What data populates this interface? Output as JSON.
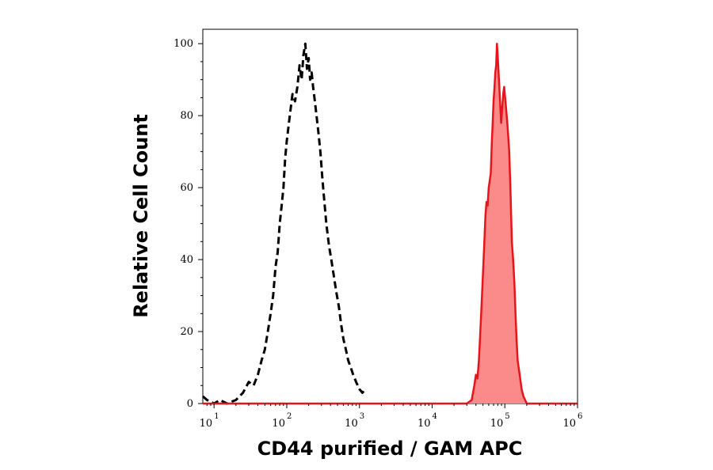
{
  "chart_data": {
    "type": "area",
    "title": "",
    "xlabel": "CD44 purified / GAM APC",
    "ylabel": "Relative Cell Count",
    "x_scale": "log",
    "xlim": [
      7,
      1000000
    ],
    "ylim": [
      0,
      104
    ],
    "x_ticks": [
      {
        "base": "10",
        "exp": "1",
        "value": 10
      },
      {
        "base": "10",
        "exp": "2",
        "value": 100
      },
      {
        "base": "10",
        "exp": "3",
        "value": 1000
      },
      {
        "base": "10",
        "exp": "4",
        "value": 10000
      },
      {
        "base": "10",
        "exp": "5",
        "value": 100000
      },
      {
        "base": "10",
        "exp": "6",
        "value": 1000000
      }
    ],
    "y_ticks": [
      "0",
      "20",
      "40",
      "60",
      "80",
      "100"
    ],
    "grid": false,
    "legend": "none",
    "series": [
      {
        "style": "dashed",
        "color": "#000000",
        "fill": "none",
        "x": [
          7,
          8,
          10,
          12,
          15,
          20,
          25,
          30,
          35,
          40,
          45,
          50,
          55,
          60,
          65,
          70,
          75,
          80,
          85,
          90,
          95,
          100,
          110,
          120,
          130,
          140,
          150,
          160,
          170,
          180,
          190,
          200,
          210,
          220,
          230,
          240,
          250,
          270,
          290,
          310,
          330,
          350,
          380,
          410,
          440,
          480,
          520,
          560,
          600,
          650,
          700,
          760,
          820,
          900,
          1000,
          1100,
          1200
        ],
        "y": [
          2,
          1,
          0,
          1,
          0,
          1,
          3,
          6,
          5,
          8,
          12,
          15,
          20,
          25,
          30,
          38,
          42,
          50,
          55,
          60,
          68,
          73,
          80,
          86,
          84,
          88,
          94,
          90,
          97,
          100,
          93,
          96,
          90,
          92,
          88,
          85,
          82,
          76,
          70,
          62,
          56,
          50,
          44,
          40,
          36,
          31,
          27,
          22,
          18,
          15,
          12,
          10,
          8,
          6,
          4,
          3,
          4
        ]
      },
      {
        "style": "solid",
        "color": "#e8141a",
        "fill": "#fb8a8a",
        "x": [
          7,
          20000,
          30000,
          35000,
          38000,
          40000,
          42000,
          44000,
          46000,
          48000,
          50000,
          52000,
          54000,
          56000,
          58000,
          60000,
          62000,
          64000,
          66000,
          68000,
          70000,
          72000,
          74000,
          76000,
          78000,
          80000,
          83000,
          86000,
          89000,
          92000,
          95000,
          98000,
          102000,
          106000,
          110000,
          115000,
          120000,
          125000,
          130000,
          135000,
          140000,
          145000,
          150000,
          160000,
          170000,
          180000,
          190000,
          200000,
          220000,
          250000,
          300000,
          1000000
        ],
        "y": [
          0,
          0,
          0,
          1,
          5,
          8,
          7,
          12,
          20,
          28,
          36,
          44,
          52,
          56,
          55,
          60,
          62,
          64,
          72,
          78,
          84,
          88,
          92,
          94,
          100,
          96,
          90,
          84,
          78,
          82,
          86,
          88,
          84,
          80,
          76,
          70,
          58,
          45,
          40,
          34,
          25,
          18,
          12,
          8,
          4,
          2,
          1,
          0,
          0,
          0,
          0,
          0
        ]
      }
    ]
  }
}
